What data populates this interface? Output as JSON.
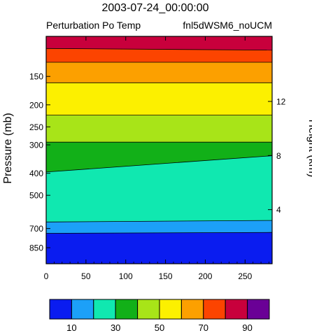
{
  "chart_data": {
    "type": "area",
    "title": "2003-07-24_00:00:00",
    "left_subtitle": "Perturbation Po Temp",
    "right_subtitle": "fnl5dWSM6_noUCM",
    "ylabel": "Pressure (mb)",
    "ylabel_right": "Height (km)",
    "x_ticks": [
      "0",
      "50",
      "100",
      "150",
      "200",
      "250"
    ],
    "xlim": [
      0,
      284
    ],
    "y_ticks_left": [
      {
        "value": 150,
        "label": "150"
      },
      {
        "value": 200,
        "label": "200"
      },
      {
        "value": 250,
        "label": "250"
      },
      {
        "value": 300,
        "label": "300"
      },
      {
        "value": 400,
        "label": "400"
      },
      {
        "value": 500,
        "label": "500"
      },
      {
        "value": 700,
        "label": "700"
      },
      {
        "value": 850,
        "label": "850"
      }
    ],
    "y_ticks_right": [
      {
        "value": 4,
        "label": "4"
      },
      {
        "value": 8,
        "label": "8"
      },
      {
        "value": 12,
        "label": "12"
      }
    ],
    "pressure_range_mb": [
      100,
      1000
    ],
    "levels": [
      10,
      20,
      30,
      40,
      50,
      60,
      70,
      80,
      90
    ],
    "level_labels": [
      "10",
      "30",
      "50",
      "70",
      "90"
    ],
    "fill_colors": [
      "#0a1cf0",
      "#1ca0f8",
      "#10e8b0",
      "#12b018",
      "#a8e418",
      "#fcf000",
      "#fca000",
      "#fc4400",
      "#c8003c",
      "#6a0096"
    ],
    "band_boundaries_mb": [
      {
        "level": 10,
        "west": 735,
        "east": 728
      },
      {
        "level": 20,
        "west": 655,
        "east": 645
      },
      {
        "level": 30,
        "west": 395,
        "east": 335
      },
      {
        "level": 40,
        "west": 292,
        "east": 292
      },
      {
        "level": 50,
        "west": 222,
        "east": 222
      },
      {
        "level": 60,
        "west": 160,
        "east": 160
      },
      {
        "level": 70,
        "west": 130,
        "east": 130
      },
      {
        "level": 80,
        "west": 113,
        "east": 115
      }
    ]
  }
}
